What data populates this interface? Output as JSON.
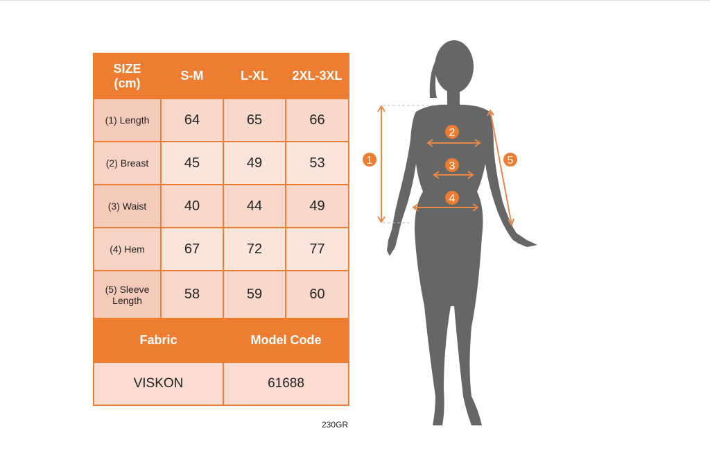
{
  "table": {
    "header": [
      "SIZE\n(cm)",
      "S-M",
      "L-XL",
      "2XL-3XL"
    ],
    "header_size_line1": "SIZE",
    "header_size_line2": "(cm)",
    "rows": [
      {
        "label": "(1) Length",
        "values": [
          "64",
          "65",
          "66"
        ]
      },
      {
        "label": "(2) Breast",
        "values": [
          "45",
          "49",
          "53"
        ]
      },
      {
        "label": "(3) Waist",
        "values": [
          "40",
          "44",
          "49"
        ]
      },
      {
        "label": "(4) Hem",
        "values": [
          "67",
          "72",
          "77"
        ]
      },
      {
        "label": "(5) Sleeve Length",
        "values": [
          "58",
          "59",
          "60"
        ]
      }
    ],
    "fabric_header": "Fabric",
    "model_code_header": "Model Code",
    "fabric_value": "VISKON",
    "model_code_value": "61688"
  },
  "weight_note": "230GR",
  "figure": {
    "markers": [
      "1",
      "2",
      "3",
      "4",
      "5"
    ]
  },
  "colors": {
    "accent": "#ED7D31",
    "cell_light": "#FBE4DA",
    "cell_dark": "#F4CBBA",
    "silhouette": "#666666"
  }
}
